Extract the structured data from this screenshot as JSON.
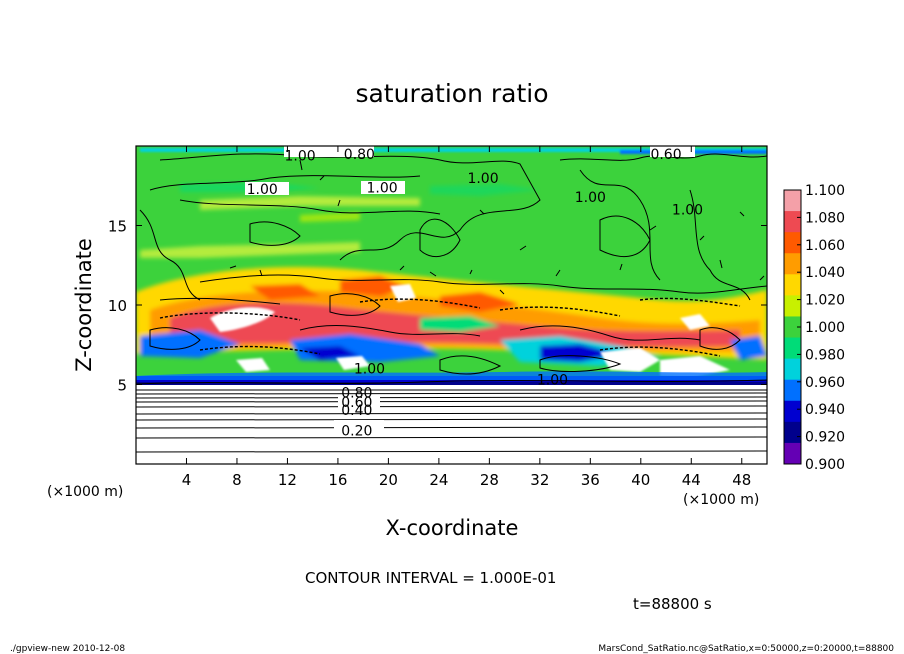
{
  "chart_data": {
    "type": "heatmap",
    "title": "saturation ratio",
    "xlabel": "X-coordinate",
    "ylabel": "Z-coordinate",
    "x_unit": "(×1000 m)",
    "z_unit": "(×1000 m)",
    "xlim": [
      0,
      50
    ],
    "zlim": [
      0,
      20
    ],
    "x_ticks": [
      4,
      8,
      12,
      16,
      20,
      24,
      28,
      32,
      36,
      40,
      44,
      48
    ],
    "z_ticks": [
      5,
      10,
      15
    ],
    "colorbar": {
      "levels": [
        "1.100",
        "1.080",
        "1.060",
        "1.040",
        "1.020",
        "1.000",
        "0.980",
        "0.960",
        "0.940",
        "0.920",
        "0.900"
      ],
      "colors": [
        "#f4a0a8",
        "#ee4a52",
        "#ff5a00",
        "#ff9c00",
        "#ffd800",
        "#c8f000",
        "#3cd23c",
        "#00dc78",
        "#00d2dc",
        "#0070ff",
        "#0000d0",
        "#00008c",
        "#6400b4"
      ]
    },
    "contour_labels": [
      {
        "text": "0.20",
        "x": 17.5,
        "z": 2.1
      },
      {
        "text": "0.40",
        "x": 17.5,
        "z": 3.4
      },
      {
        "text": "0.60",
        "x": 17.5,
        "z": 3.9
      },
      {
        "text": "0.80",
        "x": 17.5,
        "z": 4.5
      },
      {
        "text": "1.00",
        "x": 10.0,
        "z": 17.3
      },
      {
        "text": "1.00",
        "x": 19.5,
        "z": 17.4
      },
      {
        "text": "1.00",
        "x": 27.5,
        "z": 18.0
      },
      {
        "text": "1.00",
        "x": 13.0,
        "z": 19.4
      },
      {
        "text": "0.80",
        "x": 17.7,
        "z": 19.5
      },
      {
        "text": "0.60",
        "x": 42.0,
        "z": 19.5
      },
      {
        "text": "1.00",
        "x": 33.0,
        "z": 5.3
      },
      {
        "text": "1.00",
        "x": 43.7,
        "z": 16.0
      },
      {
        "text": "1.00",
        "x": 36.0,
        "z": 16.8
      },
      {
        "text": "1.00",
        "x": 18.5,
        "z": 6.0
      }
    ],
    "contour_interval_text": "CONTOUR INTERVAL = 1.000E-01",
    "time_text": "t=88800 s"
  },
  "footer": {
    "left": "./gpview-new   2010-12-08",
    "right": "MarsCond_SatRatio.nc@SatRatio,x=0:50000,z=0:20000,t=88800"
  }
}
